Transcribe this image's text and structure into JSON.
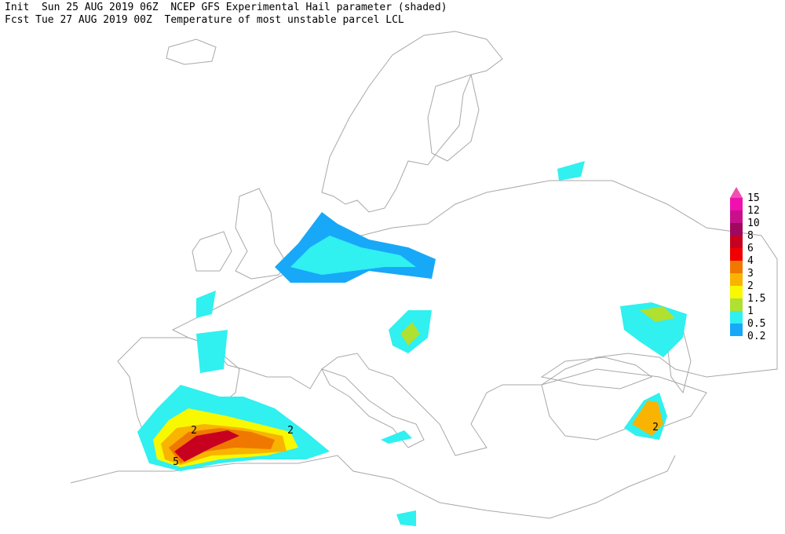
{
  "header": {
    "line1": "Init  Sun 25 AUG 2019 06Z  NCEP GFS Experimental Hail parameter (shaded)",
    "line2": "Fcst Tue 27 AUG 2019 00Z  Temperature of most unstable parcel LCL"
  },
  "legend": {
    "levels": [
      15,
      12,
      10,
      8,
      6,
      4,
      3,
      2,
      1.5,
      1,
      0.5,
      0.2
    ],
    "colors": [
      "#f050b0",
      "#f010b0",
      "#c8108c",
      "#a00860",
      "#c80020",
      "#f00000",
      "#f07800",
      "#f8b400",
      "#f8f800",
      "#b0e030",
      "#30f0f0",
      "#18a8f8"
    ]
  },
  "contour_labels": [
    2,
    2,
    5,
    2
  ]
}
